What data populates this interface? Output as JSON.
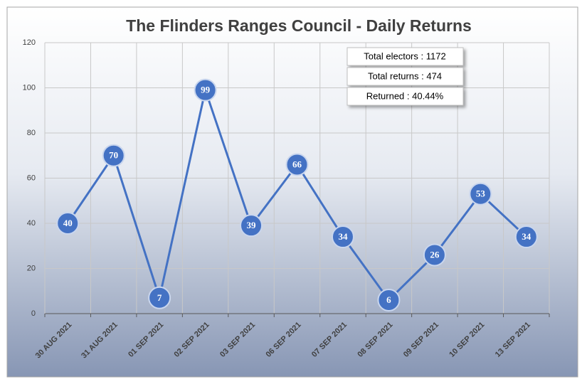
{
  "chart_data": {
    "type": "line",
    "title": "The Flinders Ranges Council - Daily Returns",
    "categories": [
      "30 AUG 2021",
      "31 AUG 2021",
      "01 SEP 2021",
      "02 SEP 2021",
      "03 SEP 2021",
      "06 SEP 2021",
      "07 SEP 2021",
      "08 SEP 2021",
      "09 SEP 2021",
      "10 SEP 2021",
      "13 SEP 2021"
    ],
    "series": [
      {
        "name": "Daily Returns",
        "color": "#4472c4",
        "values": [
          40,
          70,
          7,
          99,
          39,
          66,
          34,
          6,
          26,
          53,
          34
        ]
      }
    ],
    "ylim": [
      0,
      120
    ],
    "yticks": [
      0,
      20,
      40,
      60,
      80,
      100,
      120
    ],
    "grid": true,
    "annotations": [
      "Total electors : 1172",
      "Total returns : 474",
      "Returned : 40.44%"
    ]
  }
}
